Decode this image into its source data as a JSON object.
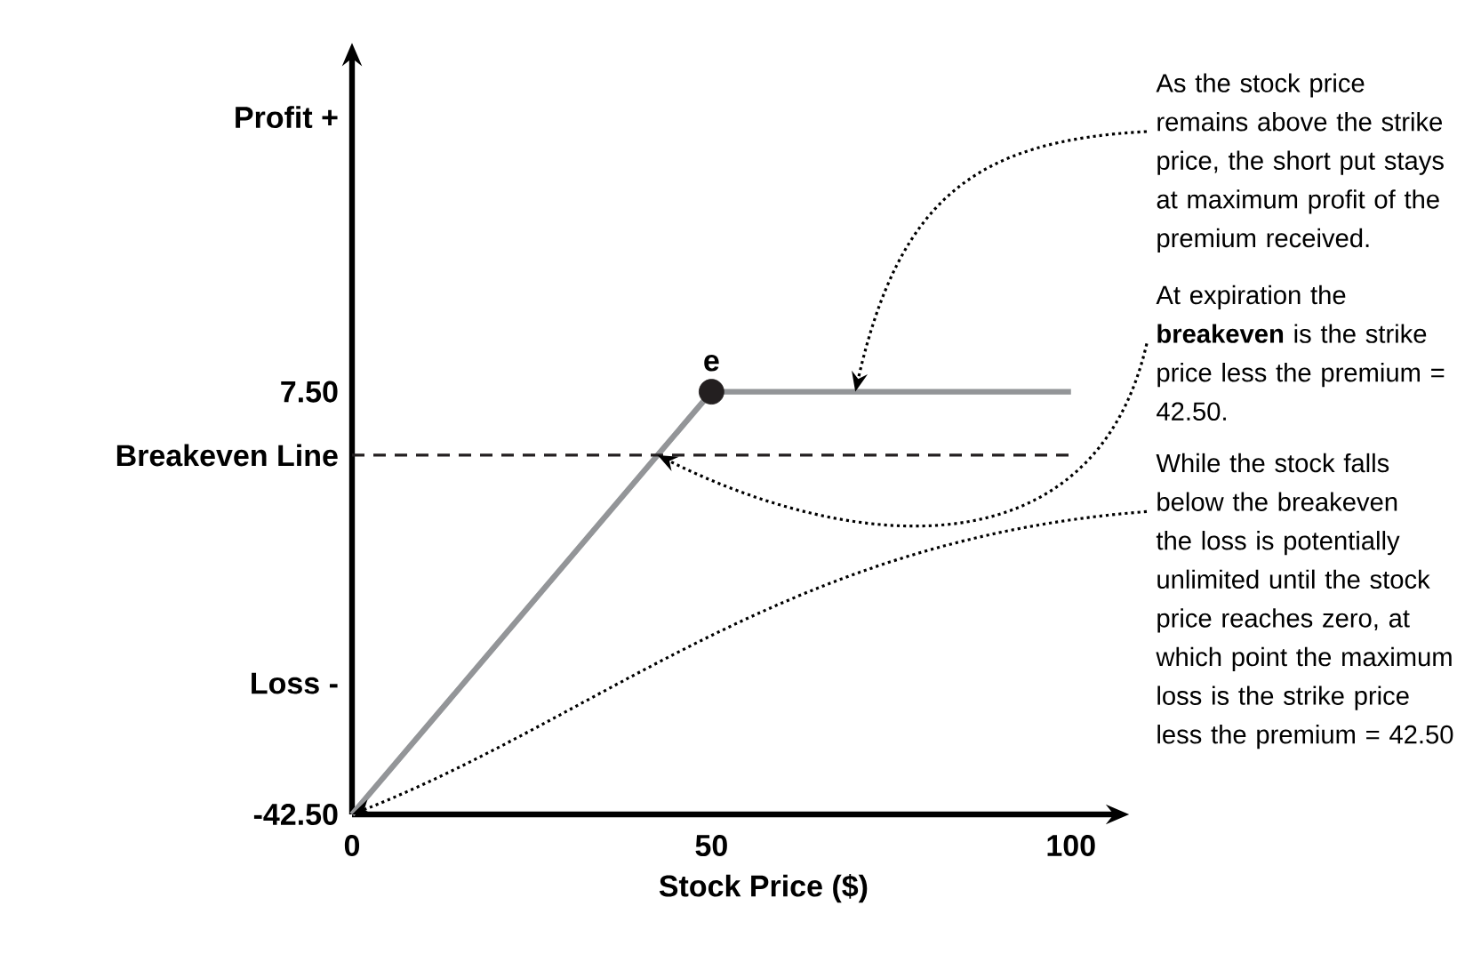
{
  "chart_data": {
    "type": "line",
    "xlabel": "Stock Price ($)",
    "xlim": [
      0,
      106
    ],
    "ylim": [
      -42.5,
      47
    ],
    "xticks": [
      0,
      50,
      100
    ],
    "yticks": [
      {
        "value": 40,
        "label": "Profit +"
      },
      {
        "value": 7.5,
        "label": "7.50"
      },
      {
        "value": 0,
        "label": "Breakeven Line"
      },
      {
        "value": -27,
        "label": "Loss -"
      },
      {
        "value": -42.5,
        "label": "-42.50"
      }
    ],
    "series": [
      {
        "x": [
          0,
          50,
          100
        ],
        "values": [
          -42.5,
          7.5,
          7.5
        ],
        "color": "#939598",
        "line_style": "solid",
        "marker": "none"
      },
      {
        "type": "scatter",
        "x": [
          50
        ],
        "values": [
          7.5
        ],
        "color": "#231f20",
        "marker": "circle"
      }
    ],
    "ref_lines": [
      {
        "axis": "y",
        "value": 0,
        "line_style": "dashed",
        "color": "#231f20"
      }
    ],
    "annotations": [
      {
        "text": "e",
        "x": 50,
        "y": 7.5
      },
      {
        "text": "As the stock price remains above the strike price, the short put stays at maximum profit of the premium received.",
        "x": 70,
        "y": 7.5
      },
      {
        "text": "At expiration the **breakeven** is the strike price less the premium = 42.50.",
        "x": 42.5,
        "y": 0
      },
      {
        "text": "While the stock falls below the breakeven the loss is potentially unlimited until the stock price reaches zero, at which point the maximum loss is the strike price less the premium = 42.50",
        "x": 0,
        "y": -42.5
      }
    ],
    "grid": false
  }
}
